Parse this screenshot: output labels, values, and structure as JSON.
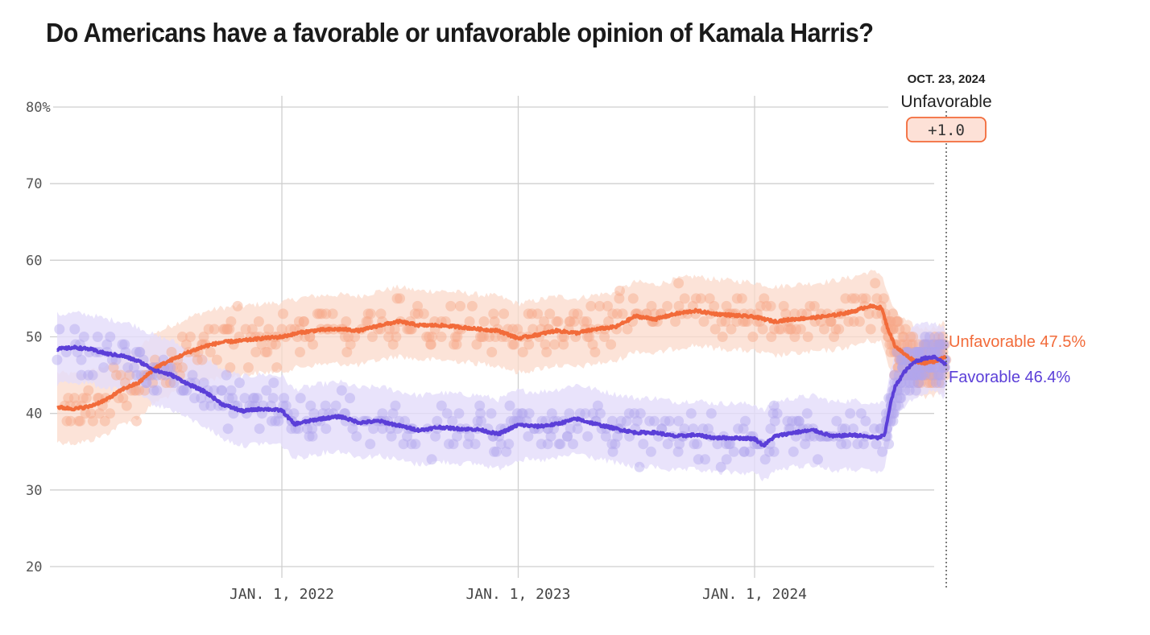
{
  "chart_data": {
    "type": "line",
    "title": "Do Americans have a favorable or unfavorable opinion of Kamala Harris?",
    "xlabel": "",
    "ylabel": "",
    "ylim": [
      20,
      80
    ],
    "xlim": [
      "2021-01-19",
      "2024-10-23"
    ],
    "y_ticks": [
      {
        "value": 80,
        "label": "80%"
      },
      {
        "value": 70,
        "label": "70"
      },
      {
        "value": 60,
        "label": "60"
      },
      {
        "value": 50,
        "label": "50"
      },
      {
        "value": 40,
        "label": "40"
      },
      {
        "value": 30,
        "label": "30"
      },
      {
        "value": 20,
        "label": "20"
      }
    ],
    "x_ticks": [
      {
        "date": "2022-01-01",
        "label": "JAN. 1, 2022"
      },
      {
        "date": "2023-01-01",
        "label": "JAN. 1, 2023"
      },
      {
        "date": "2024-01-01",
        "label": "JAN. 1, 2024"
      }
    ],
    "grid": true,
    "series": [
      {
        "name": "Unfavorable",
        "color": "#f26b3a",
        "band_color": "#fbd9cb",
        "point_color": "#f7a98a",
        "final_value": 47.5,
        "end_label": "Unfavorable 47.5%",
        "band_halfwidth": 4.5,
        "trend": [
          [
            "2021-01-19",
            40.8
          ],
          [
            "2021-02-15",
            40.6
          ],
          [
            "2021-03-10",
            40.9
          ],
          [
            "2021-04-05",
            41.8
          ],
          [
            "2021-05-01",
            43.2
          ],
          [
            "2021-05-25",
            44.0
          ],
          [
            "2021-06-20",
            46.0
          ],
          [
            "2021-07-15",
            47.0
          ],
          [
            "2021-08-10",
            48.0
          ],
          [
            "2021-09-05",
            48.8
          ],
          [
            "2021-10-01",
            49.3
          ],
          [
            "2021-11-01",
            49.5
          ],
          [
            "2021-12-01",
            49.8
          ],
          [
            "2022-01-01",
            50.0
          ],
          [
            "2022-02-01",
            50.6
          ],
          [
            "2022-03-01",
            50.9
          ],
          [
            "2022-04-01",
            51.0
          ],
          [
            "2022-05-01",
            50.8
          ],
          [
            "2022-06-01",
            51.5
          ],
          [
            "2022-07-01",
            52.0
          ],
          [
            "2022-08-01",
            51.5
          ],
          [
            "2022-09-01",
            51.5
          ],
          [
            "2022-10-01",
            51.3
          ],
          [
            "2022-11-01",
            51.0
          ],
          [
            "2022-12-01",
            50.8
          ],
          [
            "2023-01-01",
            49.8
          ],
          [
            "2023-02-01",
            50.3
          ],
          [
            "2023-03-01",
            50.8
          ],
          [
            "2023-04-01",
            50.5
          ],
          [
            "2023-05-01",
            51.0
          ],
          [
            "2023-06-01",
            51.3
          ],
          [
            "2023-07-01",
            52.7
          ],
          [
            "2023-08-01",
            52.3
          ],
          [
            "2023-09-01",
            53.0
          ],
          [
            "2023-10-01",
            53.4
          ],
          [
            "2023-11-01",
            53.0
          ],
          [
            "2023-12-01",
            52.8
          ],
          [
            "2024-01-01",
            52.6
          ],
          [
            "2024-02-01",
            52.0
          ],
          [
            "2024-03-01",
            52.3
          ],
          [
            "2024-04-01",
            52.5
          ],
          [
            "2024-05-01",
            52.8
          ],
          [
            "2024-06-01",
            53.3
          ],
          [
            "2024-06-25",
            54.0
          ],
          [
            "2024-07-15",
            53.8
          ],
          [
            "2024-07-25",
            51.0
          ],
          [
            "2024-08-05",
            48.8
          ],
          [
            "2024-08-20",
            47.7
          ],
          [
            "2024-09-05",
            46.8
          ],
          [
            "2024-09-20",
            46.6
          ],
          [
            "2024-10-05",
            46.8
          ],
          [
            "2024-10-23",
            47.5
          ]
        ]
      },
      {
        "name": "Favorable",
        "color": "#5b3fd8",
        "band_color": "#e3dcfa",
        "point_color": "#b2a6ee",
        "final_value": 46.4,
        "end_label": "Favorable 46.4%",
        "band_halfwidth": 4.5,
        "trend": [
          [
            "2021-01-19",
            48.4
          ],
          [
            "2021-02-15",
            48.6
          ],
          [
            "2021-03-10",
            48.4
          ],
          [
            "2021-04-05",
            47.8
          ],
          [
            "2021-05-01",
            47.5
          ],
          [
            "2021-05-25",
            46.8
          ],
          [
            "2021-06-20",
            45.6
          ],
          [
            "2021-07-15",
            45.0
          ],
          [
            "2021-08-10",
            43.8
          ],
          [
            "2021-09-05",
            42.8
          ],
          [
            "2021-10-01",
            41.2
          ],
          [
            "2021-11-01",
            40.3
          ],
          [
            "2021-12-01",
            40.6
          ],
          [
            "2022-01-01",
            40.4
          ],
          [
            "2022-01-20",
            38.6
          ],
          [
            "2022-03-01",
            39.3
          ],
          [
            "2022-04-01",
            39.6
          ],
          [
            "2022-05-01",
            38.8
          ],
          [
            "2022-06-01",
            39.0
          ],
          [
            "2022-07-01",
            38.4
          ],
          [
            "2022-08-01",
            37.8
          ],
          [
            "2022-09-01",
            38.2
          ],
          [
            "2022-10-01",
            38.0
          ],
          [
            "2022-11-01",
            37.9
          ],
          [
            "2022-12-01",
            37.3
          ],
          [
            "2023-01-01",
            38.5
          ],
          [
            "2023-02-01",
            38.3
          ],
          [
            "2023-03-01",
            38.6
          ],
          [
            "2023-04-01",
            39.3
          ],
          [
            "2023-05-01",
            38.6
          ],
          [
            "2023-06-01",
            38.0
          ],
          [
            "2023-07-01",
            37.5
          ],
          [
            "2023-08-01",
            37.5
          ],
          [
            "2023-09-01",
            37.0
          ],
          [
            "2023-10-01",
            37.2
          ],
          [
            "2023-11-01",
            36.8
          ],
          [
            "2023-12-01",
            36.8
          ],
          [
            "2024-01-01",
            36.7
          ],
          [
            "2024-01-15",
            35.8
          ],
          [
            "2024-02-01",
            37.0
          ],
          [
            "2024-03-01",
            37.5
          ],
          [
            "2024-04-01",
            37.8
          ],
          [
            "2024-05-01",
            37.0
          ],
          [
            "2024-06-01",
            37.2
          ],
          [
            "2024-07-10",
            36.8
          ],
          [
            "2024-07-20",
            37.2
          ],
          [
            "2024-07-28",
            41.0
          ],
          [
            "2024-08-05",
            43.5
          ],
          [
            "2024-08-20",
            45.5
          ],
          [
            "2024-09-05",
            46.8
          ],
          [
            "2024-09-20",
            47.2
          ],
          [
            "2024-10-05",
            47.4
          ],
          [
            "2024-10-23",
            46.4
          ]
        ]
      }
    ],
    "annotation": {
      "date_label": "OCT. 23, 2024",
      "leader_label": "Unfavorable",
      "margin_label": "+1.0",
      "margin_value": 1.0,
      "badge_fill": "#fde1d7",
      "badge_stroke": "#f26b3a"
    }
  }
}
